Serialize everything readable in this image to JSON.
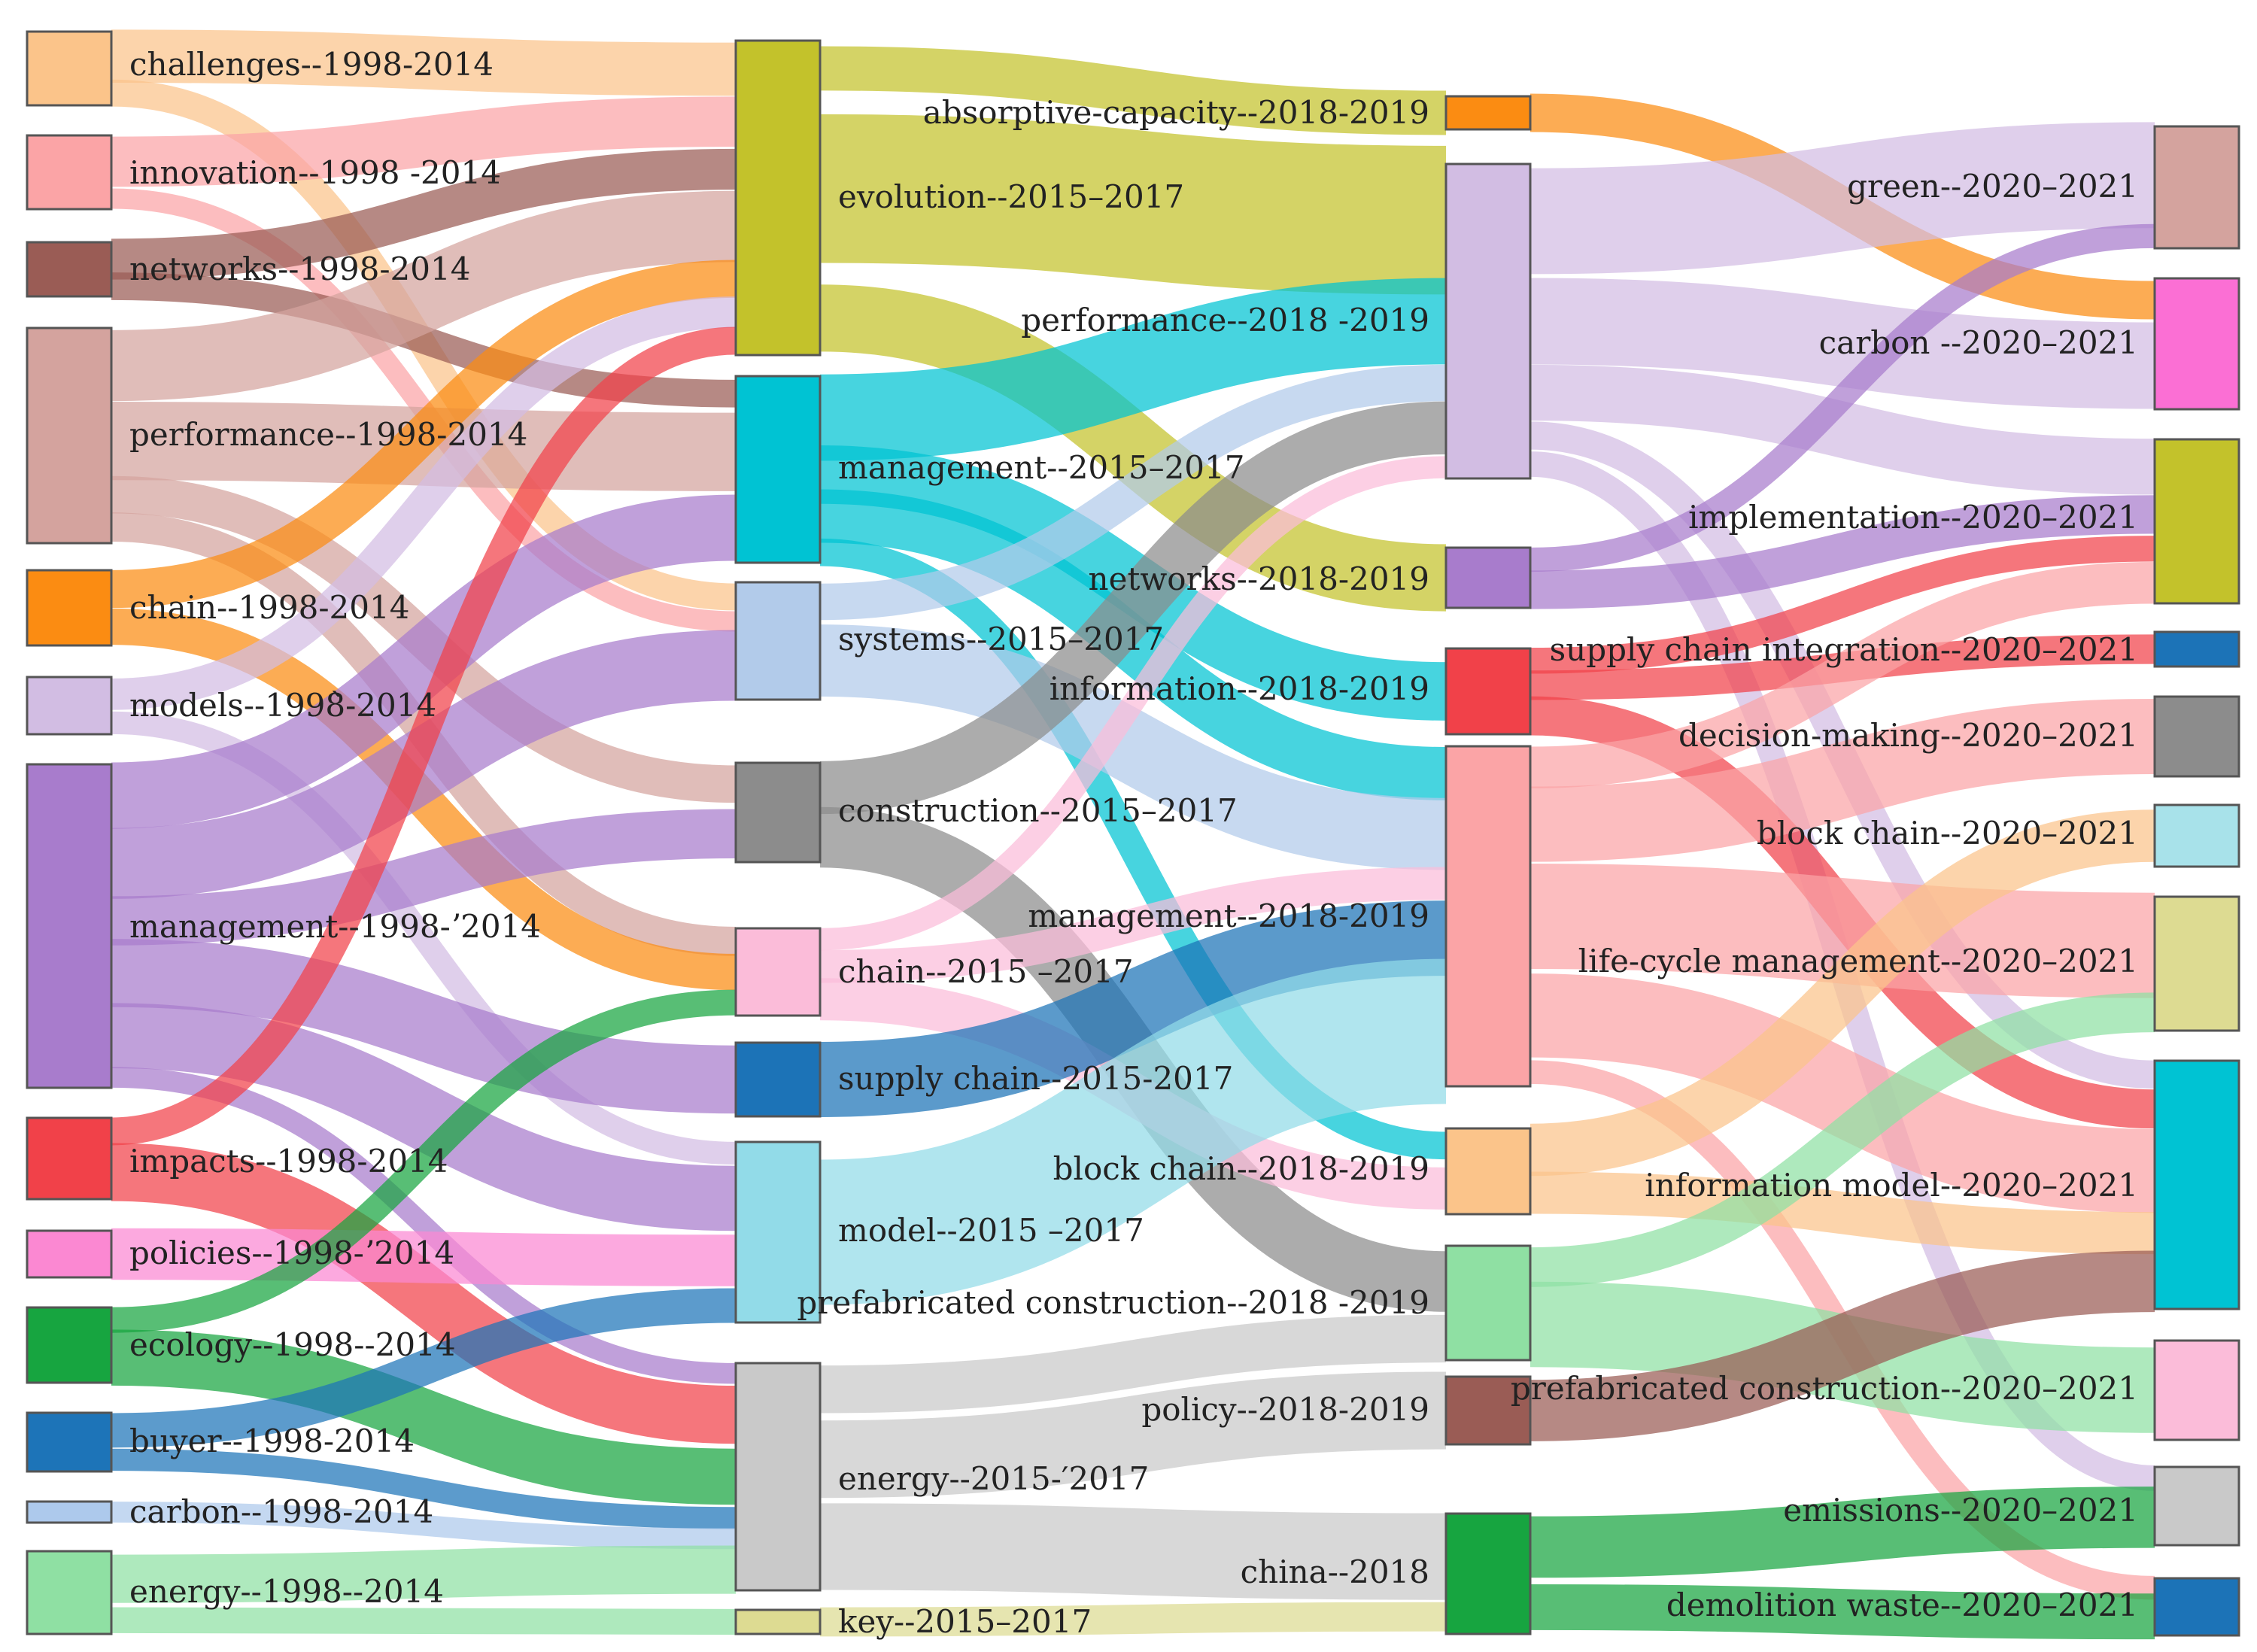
{
  "diagram": {
    "type": "sankey",
    "columns": [
      {
        "period": "1998-2014",
        "nodes": [
          {
            "id": "c1_challenges",
            "label": "challenges--1998-2014",
            "color": "#fbc48a"
          },
          {
            "id": "c1_innovation",
            "label": "innovation--1998 -2014",
            "color": "#fba4a6"
          },
          {
            "id": "c1_networks",
            "label": "networks--1998-2014",
            "color": "#9a5c55"
          },
          {
            "id": "c1_performance",
            "label": "performance--1998-2014",
            "color": "#d4a39e"
          },
          {
            "id": "c1_chain",
            "label": "chain--1998-2014",
            "color": "#fb8c12"
          },
          {
            "id": "c1_models",
            "label": "models--1998̀-2014",
            "color": "#d2bde3"
          },
          {
            "id": "c1_management",
            "label": "management--1998-ʼ2014",
            "color": "#a87ccc"
          },
          {
            "id": "c1_impacts",
            "label": "impacts--1998-2014",
            "color": "#f14149"
          },
          {
            "id": "c1_policies",
            "label": "policies--1998-ʼ2014",
            "color": "#fb88d2"
          },
          {
            "id": "c1_ecology",
            "label": "ecology--1998--2014",
            "color": "#17a540"
          },
          {
            "id": "c1_buyer",
            "label": "buyer--1998-2014",
            "color": "#1d74b8"
          },
          {
            "id": "c1_carbon",
            "label": "carbon--1998-2014",
            "color": "#adc9ec"
          },
          {
            "id": "c1_energy",
            "label": "energy--1998--2014",
            "color": "#8fe0a3"
          }
        ]
      },
      {
        "period": "2015-2017",
        "nodes": [
          {
            "id": "c2_evolution",
            "label": "evolution--2015–2017",
            "color": "#c3c22b"
          },
          {
            "id": "c2_management",
            "label": "management--2015–2017",
            "color": "#00c3d3"
          },
          {
            "id": "c2_systems",
            "label": "systems--2015–2017",
            "color": "#b2cbea"
          },
          {
            "id": "c2_construction",
            "label": "construction--2015–2017",
            "color": "#8c8c8c"
          },
          {
            "id": "c2_chain",
            "label": "chain--2015 –2017",
            "color": "#fbbcd9"
          },
          {
            "id": "c2_supplychain",
            "label": "supply chain--2015-2017",
            "color": "#1c73b7"
          },
          {
            "id": "c2_model",
            "label": "model--2015 –2017",
            "color": "#92dbe8"
          },
          {
            "id": "c2_energy",
            "label": "energy--2015-′2017",
            "color": "#c9c9c9"
          },
          {
            "id": "c2_key",
            "label": "key--2015–2017",
            "color": "#dddb92"
          }
        ]
      },
      {
        "period": "2018-2019",
        "nodes": [
          {
            "id": "c3_absorptive",
            "label": "absorptive-capacity--2018-2019",
            "color": "#fb8c12"
          },
          {
            "id": "c3_performance",
            "label": "performance--2018 -2019",
            "color": "#d2bde3"
          },
          {
            "id": "c3_networks",
            "label": "networks--2018-2019",
            "color": "#a87ccc"
          },
          {
            "id": "c3_information",
            "label": "information--2018-2019",
            "color": "#f14149"
          },
          {
            "id": "c3_management",
            "label": "management--2018-2019",
            "color": "#fba4a6"
          },
          {
            "id": "c3_blockchain",
            "label": "block chain--2018-2019",
            "color": "#fbc48a"
          },
          {
            "id": "c3_prefab",
            "label": "prefabricated construction--2018 -2019",
            "color": "#8fe0a3"
          },
          {
            "id": "c3_policy",
            "label": "policy--2018-2019",
            "color": "#9a5c55"
          },
          {
            "id": "c3_china",
            "label": "china--2018",
            "color": "#17a540"
          }
        ]
      },
      {
        "period": "2020-2021",
        "nodes": [
          {
            "id": "c4_green",
            "label": "green--2020–2021",
            "color": "#d4a39e"
          },
          {
            "id": "c4_carbon",
            "label": "carbon --2020–2021",
            "color": "#fb6fd4"
          },
          {
            "id": "c4_implementation",
            "label": "implementation--2020–2021",
            "color": "#c3c22b"
          },
          {
            "id": "c4_sci",
            "label": "supply chain integration--2020–2021",
            "color": "#1c73b7"
          },
          {
            "id": "c4_decision",
            "label": "decision-making--2020–2021",
            "color": "#8c8c8c"
          },
          {
            "id": "c4_blockchain",
            "label": "block chain--2020–2021",
            "color": "#a8e2ea"
          },
          {
            "id": "c4_lifecycle",
            "label": "life-cycle management--2020–2021",
            "color": "#dddb92"
          },
          {
            "id": "c4_infomodel",
            "label": "information model--2020–2021",
            "color": "#00c3d3"
          },
          {
            "id": "c4_prefab",
            "label": "prefabricated construction--2020–2021",
            "color": "#fbbcd9"
          },
          {
            "id": "c4_emissions",
            "label": "emissions--2020–2021",
            "color": "#c9c9c9"
          },
          {
            "id": "c4_demolition",
            "label": "demolition waste--2020–2021",
            "color": "#1c73b7"
          }
        ]
      }
    ],
    "links": [
      {
        "source": "c1_challenges",
        "target": "c2_evolution",
        "value": 6,
        "color": "#fbc48a"
      },
      {
        "source": "c1_challenges",
        "target": "c2_systems",
        "value": 3,
        "color": "#fbc48a"
      },
      {
        "source": "c1_innovation",
        "target": "c2_evolution",
        "value": 5,
        "color": "#fba4a6"
      },
      {
        "source": "c1_innovation",
        "target": "c2_systems",
        "value": 2,
        "color": "#fba4a6"
      },
      {
        "source": "c1_networks",
        "target": "c2_evolution",
        "value": 5,
        "color": "#9a5c55"
      },
      {
        "source": "c1_networks",
        "target": "c2_management",
        "value": 3,
        "color": "#9a5c55"
      },
      {
        "source": "c1_performance",
        "target": "c2_evolution",
        "value": 7,
        "color": "#d4a39e"
      },
      {
        "source": "c1_performance",
        "target": "c2_management",
        "value": 7,
        "color": "#d4a39e"
      },
      {
        "source": "c1_performance",
        "target": "c2_construction",
        "value": 3,
        "color": "#d4a39e"
      },
      {
        "source": "c1_performance",
        "target": "c2_chain",
        "value": 3,
        "color": "#d4a39e"
      },
      {
        "source": "c1_chain",
        "target": "c2_evolution",
        "value": 4,
        "color": "#fb8c12"
      },
      {
        "source": "c1_chain",
        "target": "c2_chain",
        "value": 4,
        "color": "#fb8c12"
      },
      {
        "source": "c1_models",
        "target": "c2_evolution",
        "value": 3,
        "color": "#d2bde3"
      },
      {
        "source": "c1_models",
        "target": "c2_model",
        "value": 2,
        "color": "#d2bde3"
      },
      {
        "source": "c1_management",
        "target": "c2_management",
        "value": 6,
        "color": "#a87ccc"
      },
      {
        "source": "c1_management",
        "target": "c2_systems",
        "value": 7,
        "color": "#a87ccc"
      },
      {
        "source": "c1_management",
        "target": "c2_construction",
        "value": 4,
        "color": "#a87ccc"
      },
      {
        "source": "c1_management",
        "target": "c2_supplychain",
        "value": 6,
        "color": "#a87ccc"
      },
      {
        "source": "c1_management",
        "target": "c2_model",
        "value": 6,
        "color": "#a87ccc"
      },
      {
        "source": "c1_management",
        "target": "c2_energy",
        "value": 2,
        "color": "#a87ccc"
      },
      {
        "source": "c1_impacts",
        "target": "c2_evolution",
        "value": 3,
        "color": "#f14149"
      },
      {
        "source": "c1_impacts",
        "target": "c2_energy",
        "value": 6,
        "color": "#f14149"
      },
      {
        "source": "c1_policies",
        "target": "c2_model",
        "value": 5,
        "color": "#fb88d2"
      },
      {
        "source": "c1_ecology",
        "target": "c2_chain",
        "value": 3,
        "color": "#17a540"
      },
      {
        "source": "c1_ecology",
        "target": "c2_energy",
        "value": 6,
        "color": "#17a540"
      },
      {
        "source": "c1_buyer",
        "target": "c2_model",
        "value": 3,
        "color": "#1d74b8"
      },
      {
        "source": "c1_buyer",
        "target": "c2_energy",
        "value": 2,
        "color": "#1d74b8"
      },
      {
        "source": "c1_carbon",
        "target": "c2_energy",
        "value": 2,
        "color": "#adc9ec"
      },
      {
        "source": "c1_energy",
        "target": "c2_energy",
        "value": 4,
        "color": "#8fe0a3"
      },
      {
        "source": "c1_energy",
        "target": "c2_key",
        "value": 2,
        "color": "#8fe0a3"
      },
      {
        "source": "c2_evolution",
        "target": "c3_absorptive",
        "value": 3,
        "color": "#c3c22b"
      },
      {
        "source": "c2_evolution",
        "target": "c3_performance",
        "value": 10,
        "color": "#c3c22b"
      },
      {
        "source": "c2_evolution",
        "target": "c3_networks",
        "value": 4,
        "color": "#c3c22b"
      },
      {
        "source": "c2_management",
        "target": "c3_performance",
        "value": 8,
        "color": "#00c3d3"
      },
      {
        "source": "c2_management",
        "target": "c3_information",
        "value": 3,
        "color": "#00c3d3"
      },
      {
        "source": "c2_management",
        "target": "c3_management",
        "value": 5,
        "color": "#00c3d3"
      },
      {
        "source": "c2_management",
        "target": "c3_blockchain",
        "value": 2,
        "color": "#00c3d3"
      },
      {
        "source": "c2_systems",
        "target": "c3_performance",
        "value": 3,
        "color": "#b2cbea"
      },
      {
        "source": "c2_systems",
        "target": "c3_management",
        "value": 6,
        "color": "#b2cbea"
      },
      {
        "source": "c2_construction",
        "target": "c3_performance",
        "value": 5,
        "color": "#8c8c8c"
      },
      {
        "source": "c2_construction",
        "target": "c3_prefab",
        "value": 5,
        "color": "#8c8c8c"
      },
      {
        "source": "c2_chain",
        "target": "c3_performance",
        "value": 2,
        "color": "#fbbcd9"
      },
      {
        "source": "c2_chain",
        "target": "c3_management",
        "value": 3,
        "color": "#fbbcd9"
      },
      {
        "source": "c2_chain",
        "target": "c3_blockchain",
        "value": 3,
        "color": "#fbbcd9"
      },
      {
        "source": "c2_supplychain",
        "target": "c3_management",
        "value": 7,
        "color": "#1c73b7"
      },
      {
        "source": "c2_model",
        "target": "c3_management",
        "value": 10,
        "color": "#92dbe8"
      },
      {
        "source": "c2_energy",
        "target": "c3_prefab",
        "value": 3,
        "color": "#c9c9c9"
      },
      {
        "source": "c2_energy",
        "target": "c3_policy",
        "value": 5,
        "color": "#c9c9c9"
      },
      {
        "source": "c2_energy",
        "target": "c3_china",
        "value": 5,
        "color": "#c9c9c9"
      },
      {
        "source": "c2_key",
        "target": "c3_china",
        "value": 2,
        "color": "#dddb92"
      },
      {
        "source": "c3_absorptive",
        "target": "c4_carbon",
        "value": 3,
        "color": "#fb8c12"
      },
      {
        "source": "c3_performance",
        "target": "c4_green",
        "value": 8,
        "color": "#d2bde3"
      },
      {
        "source": "c3_performance",
        "target": "c4_carbon",
        "value": 6,
        "color": "#d2bde3"
      },
      {
        "source": "c3_performance",
        "target": "c4_implementation",
        "value": 4,
        "color": "#d2bde3"
      },
      {
        "source": "c3_performance",
        "target": "c4_infomodel",
        "value": 2,
        "color": "#d2bde3"
      },
      {
        "source": "c3_performance",
        "target": "c4_emissions",
        "value": 2,
        "color": "#d2bde3"
      },
      {
        "source": "c3_networks",
        "target": "c4_green",
        "value": 2,
        "color": "#a87ccc"
      },
      {
        "source": "c3_networks",
        "target": "c4_implementation",
        "value": 3,
        "color": "#a87ccc"
      },
      {
        "source": "c3_information",
        "target": "c4_implementation",
        "value": 2,
        "color": "#f14149"
      },
      {
        "source": "c3_information",
        "target": "c4_sci",
        "value": 2,
        "color": "#f14149"
      },
      {
        "source": "c3_information",
        "target": "c4_infomodel",
        "value": 3,
        "color": "#f14149"
      },
      {
        "source": "c3_management",
        "target": "c4_implementation",
        "value": 3,
        "color": "#fba4a6"
      },
      {
        "source": "c3_management",
        "target": "c4_decision",
        "value": 5,
        "color": "#fba4a6"
      },
      {
        "source": "c3_management",
        "target": "c4_lifecycle",
        "value": 8,
        "color": "#fba4a6"
      },
      {
        "source": "c3_management",
        "target": "c4_infomodel",
        "value": 6,
        "color": "#fba4a6"
      },
      {
        "source": "c3_management",
        "target": "c4_demolition",
        "value": 2,
        "color": "#fba4a6"
      },
      {
        "source": "c3_blockchain",
        "target": "c4_blockchain",
        "value": 3,
        "color": "#fbc48a"
      },
      {
        "source": "c3_blockchain",
        "target": "c4_infomodel",
        "value": 3,
        "color": "#fbc48a"
      },
      {
        "source": "c3_prefab",
        "target": "c4_lifecycle",
        "value": 3,
        "color": "#8fe0a3"
      },
      {
        "source": "c3_prefab",
        "target": "c4_prefab",
        "value": 5,
        "color": "#8fe0a3"
      },
      {
        "source": "c3_policy",
        "target": "c4_infomodel",
        "value": 4,
        "color": "#9a5c55"
      },
      {
        "source": "c3_china",
        "target": "c4_emissions",
        "value": 5,
        "color": "#17a540"
      },
      {
        "source": "c3_china",
        "target": "c4_demolition",
        "value": 4,
        "color": "#17a540"
      }
    ]
  }
}
